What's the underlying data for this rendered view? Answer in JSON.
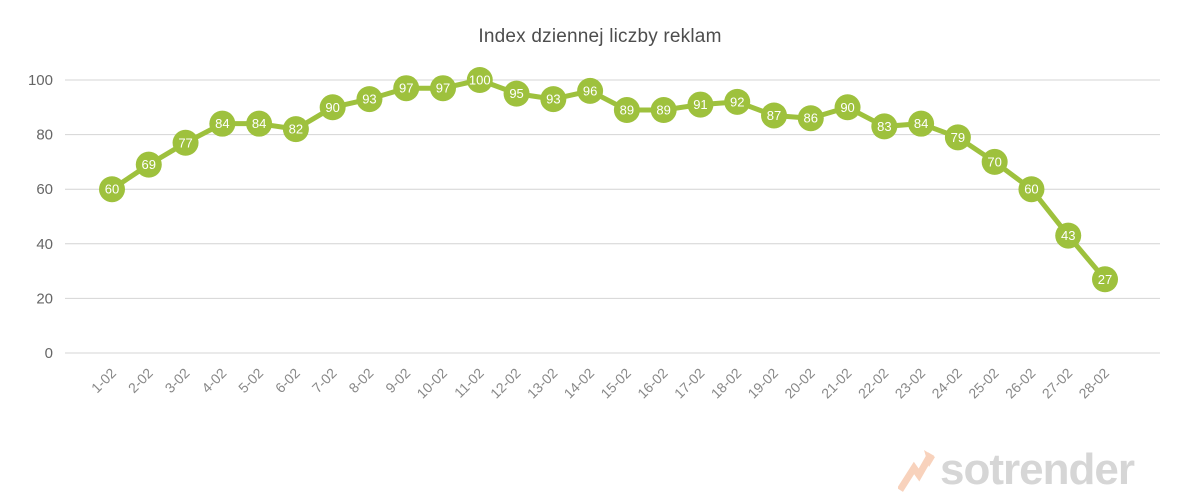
{
  "chart_data": {
    "type": "line",
    "title": "Index dziennej liczby reklam",
    "categories": [
      "1-02",
      "2-02",
      "3-02",
      "4-02",
      "5-02",
      "6-02",
      "7-02",
      "8-02",
      "9-02",
      "10-02",
      "11-02",
      "12-02",
      "13-02",
      "14-02",
      "15-02",
      "16-02",
      "17-02",
      "18-02",
      "19-02",
      "20-02",
      "21-02",
      "22-02",
      "23-02",
      "24-02",
      "25-02",
      "26-02",
      "27-02",
      "28-02"
    ],
    "values": [
      60,
      69,
      77,
      84,
      84,
      82,
      90,
      93,
      97,
      97,
      100,
      95,
      93,
      96,
      89,
      89,
      91,
      92,
      87,
      86,
      90,
      83,
      84,
      79,
      70,
      60,
      43,
      27
    ],
    "xlabel": "",
    "ylabel": "",
    "ylim": [
      0,
      100
    ],
    "yticks": [
      0,
      20,
      40,
      60,
      80,
      100
    ],
    "grid": true,
    "legend": "none",
    "data_labels": "inside-markers",
    "colors": {
      "series": "#9ec13d",
      "marker_label": "#ffffff",
      "gridline": "#d4d4d4",
      "y_tick_label": "#666666",
      "x_tick_label": "#888888",
      "title": "#4d4d4d"
    }
  },
  "watermark": {
    "text": "sotrender",
    "icon": "trend-arrow-icon",
    "text_color": "#d6d6d6",
    "icon_color": "#f8d2bc"
  }
}
